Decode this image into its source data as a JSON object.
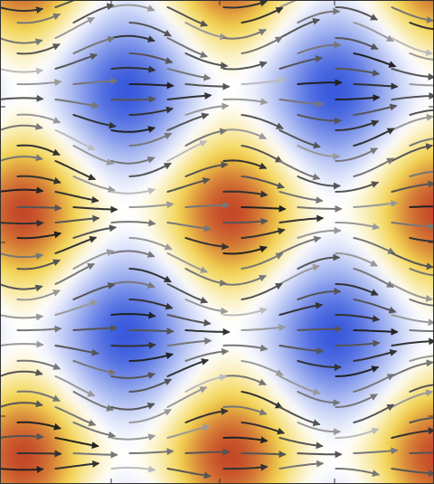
{
  "chart_data": {
    "type": "streamplot"
  }
}
